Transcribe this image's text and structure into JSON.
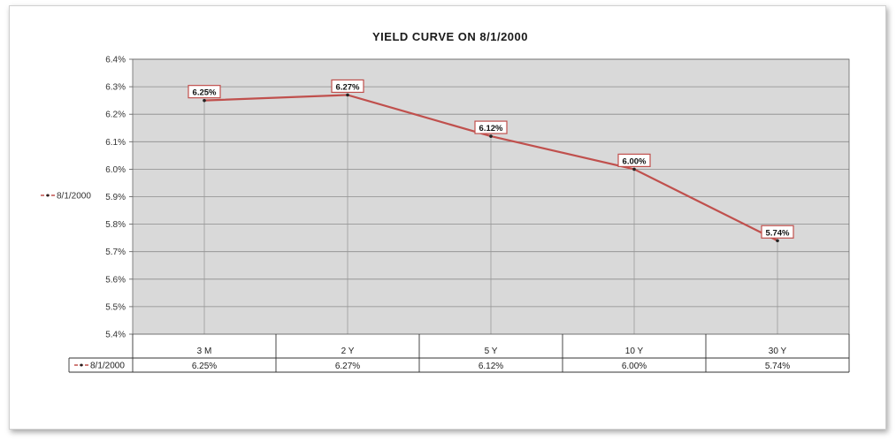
{
  "chart_data": {
    "type": "line",
    "title": "YIELD CURVE ON 8/1/2000",
    "categories": [
      "3 M",
      "2 Y",
      "5 Y",
      "10 Y",
      "30 Y"
    ],
    "series": [
      {
        "name": "8/1/2000",
        "values": [
          6.25,
          6.27,
          6.12,
          6.0,
          5.74
        ],
        "color": "#c0504d"
      }
    ],
    "data_labels": [
      "6.25%",
      "6.27%",
      "6.12%",
      "6.00%",
      "5.74%"
    ],
    "y_ticks": [
      "5.4%",
      "5.5%",
      "5.6%",
      "5.7%",
      "5.8%",
      "5.9%",
      "6.0%",
      "6.1%",
      "6.2%",
      "6.3%",
      "6.4%"
    ],
    "ylim": [
      5.4,
      6.4
    ],
    "grid": true,
    "legend_position": "left",
    "data_table": {
      "series_label": "8/1/2000",
      "values": [
        "6.25%",
        "6.27%",
        "6.12%",
        "6.00%",
        "5.74%"
      ]
    },
    "colors": {
      "plot_background": "#d9d9d9",
      "line": "#c0504d",
      "gridline": "#8c8c8c"
    }
  }
}
